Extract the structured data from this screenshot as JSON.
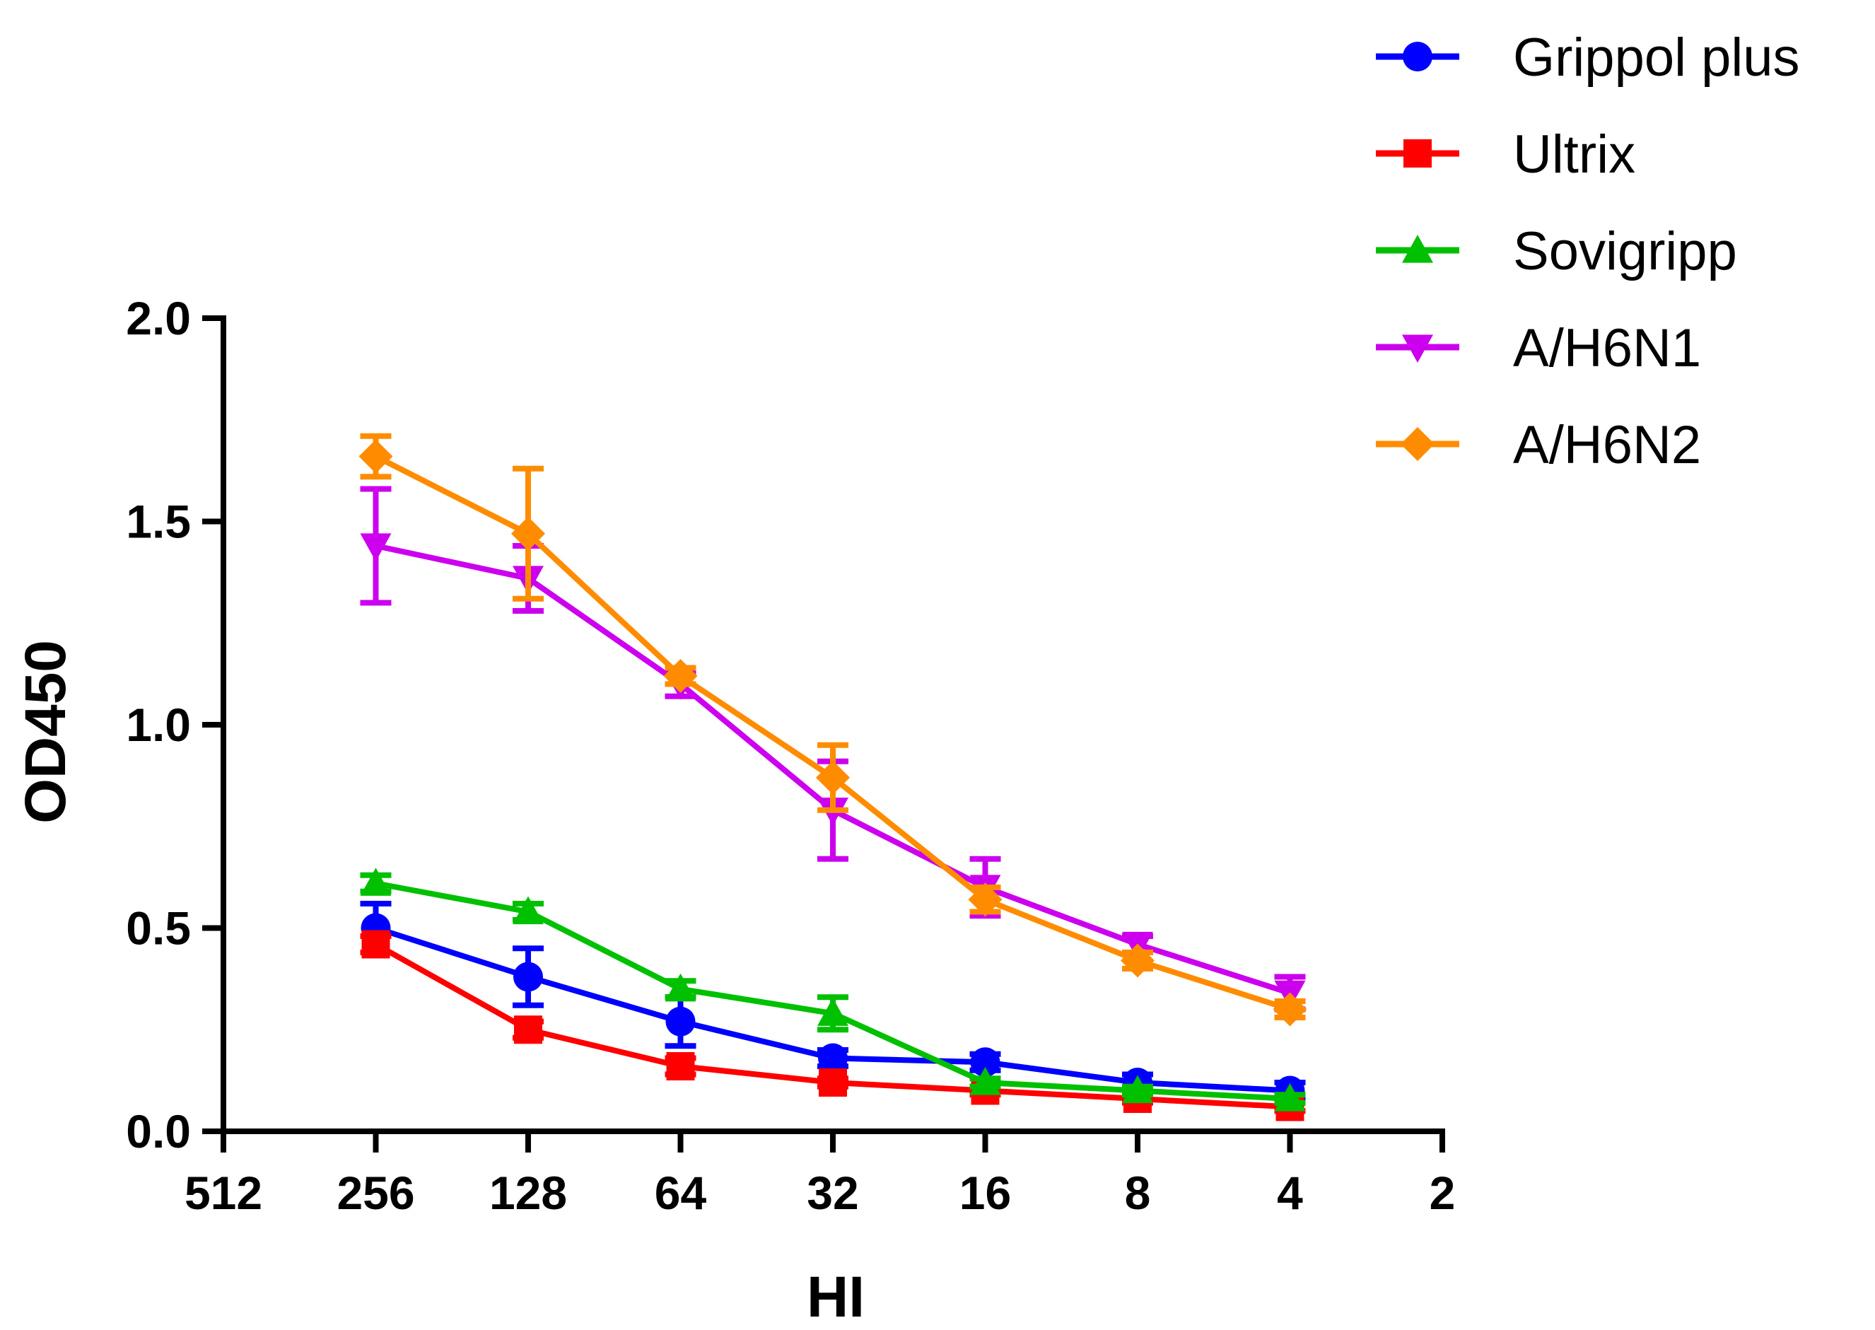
{
  "chart_data": {
    "type": "line",
    "title": "",
    "xlabel": "HI",
    "ylabel": "OD450",
    "ylim": [
      0,
      2
    ],
    "x_ticks": [
      "512",
      "256",
      "128",
      "64",
      "32",
      "16",
      "8",
      "4",
      "2"
    ],
    "y_ticks": [
      "0.0",
      "0.5",
      "1.0",
      "1.5",
      "2.0"
    ],
    "x": [
      256,
      128,
      64,
      32,
      16,
      8,
      4
    ],
    "legend_position": "top-right",
    "series": [
      {
        "name": "Grippol plus",
        "color": "#0000ff",
        "marker": "circle",
        "values": [
          0.5,
          0.38,
          0.27,
          0.18,
          0.17,
          0.12,
          0.1
        ],
        "errors": [
          0.06,
          0.07,
          0.06,
          0.02,
          0.02,
          0.02,
          0.02
        ]
      },
      {
        "name": "Ultrix",
        "color": "#ff0000",
        "marker": "square",
        "values": [
          0.46,
          0.25,
          0.16,
          0.12,
          0.1,
          0.08,
          0.06
        ],
        "errors": [
          0.02,
          0.02,
          0.02,
          0.01,
          0.01,
          0.01,
          0.01
        ]
      },
      {
        "name": "Sovigripp",
        "color": "#00c000",
        "marker": "triangle-up",
        "values": [
          0.61,
          0.54,
          0.35,
          0.29,
          0.12,
          0.1,
          0.08
        ],
        "errors": [
          0.02,
          0.02,
          0.02,
          0.04,
          0.01,
          0.01,
          0.01
        ]
      },
      {
        "name": "A/H6N1",
        "color": "#cc00ee",
        "marker": "triangle-down",
        "values": [
          1.44,
          1.36,
          1.1,
          0.79,
          0.6,
          0.46,
          0.34
        ],
        "errors": [
          0.14,
          0.08,
          0.03,
          0.12,
          0.07,
          0.02,
          0.04
        ]
      },
      {
        "name": "A/H6N2",
        "color": "#ff8c00",
        "marker": "diamond",
        "values": [
          1.66,
          1.47,
          1.12,
          0.87,
          0.57,
          0.42,
          0.3
        ],
        "errors": [
          0.05,
          0.16,
          0.02,
          0.08,
          0.03,
          0.02,
          0.02
        ]
      }
    ]
  }
}
